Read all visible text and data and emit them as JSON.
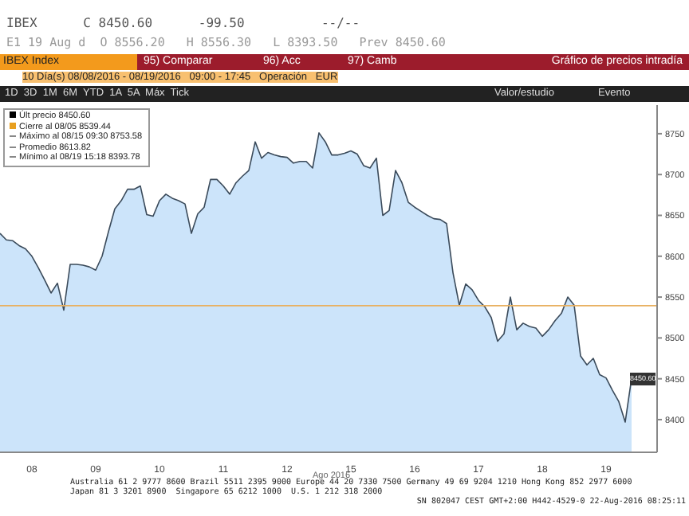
{
  "chart_data": {
    "type": "area",
    "title": "Gráfico de precios intradía",
    "subtitle": "IBEX Index",
    "xlabel": "Ago 2016",
    "categories": [
      null,
      null,
      null,
      null,
      null,
      "08",
      null,
      null,
      null,
      null,
      null,
      null,
      null,
      null,
      null,
      "09",
      null,
      null,
      null,
      null,
      null,
      null,
      null,
      null,
      null,
      "10",
      null,
      null,
      null,
      null,
      null,
      null,
      null,
      null,
      null,
      "11",
      null,
      null,
      null,
      null,
      null,
      null,
      null,
      null,
      null,
      "12",
      null,
      null,
      null,
      null,
      null,
      null,
      null,
      null,
      null,
      "15",
      null,
      null,
      null,
      null,
      null,
      null,
      null,
      null,
      null,
      "16",
      null,
      null,
      null,
      null,
      null,
      null,
      null,
      null,
      null,
      "17",
      null,
      null,
      null,
      null,
      null,
      null,
      null,
      null,
      null,
      "18",
      null,
      null,
      null,
      null,
      null,
      null,
      null,
      null,
      null,
      "19",
      null,
      null,
      null,
      null,
      null,
      null,
      null,
      null
    ],
    "series": [
      {
        "color": "#3a4a5a",
        "values": [
          8628,
          8620,
          8619,
          8613,
          8609,
          8600,
          8586,
          8571,
          8555,
          8567,
          8534,
          8590,
          8590,
          8589,
          8587,
          8583,
          8600,
          8630,
          8658,
          8668,
          8682,
          8682,
          8686,
          8651,
          8649,
          8668,
          8676,
          8671,
          8668,
          8664,
          8628,
          8652,
          8660,
          8694,
          8694,
          8686,
          8676,
          8690,
          8698,
          8705,
          8740,
          8720,
          8727,
          8724,
          8722,
          8721,
          8714,
          8716,
          8716,
          8708,
          8751,
          8740,
          8724,
          8724,
          8726,
          8729,
          8725,
          8711,
          8708,
          8720,
          8650,
          8656,
          8705,
          8690,
          8666,
          8660,
          8655,
          8650,
          8646,
          8645,
          8640,
          8580,
          8540,
          8566,
          8559,
          8546,
          8538,
          8525,
          8496,
          8505,
          8550,
          8510,
          8518,
          8514,
          8512,
          8502,
          8510,
          8521,
          8530,
          8550,
          8540,
          8478,
          8467,
          8475,
          8455,
          8451,
          8436,
          8422,
          8397,
          8450.6,
          null,
          null,
          null,
          null
        ]
      }
    ],
    "ylim": [
      8360,
      8785
    ],
    "yticks": [
      8400,
      8450,
      8500,
      8550,
      8600,
      8650,
      8700,
      8750
    ],
    "ref_lines": [
      {
        "axis": "y",
        "value": 8539.44,
        "color": "#e8b060"
      }
    ],
    "grid": false,
    "annotations": [
      "IBEX      C 8450.60      -99.50          --/--",
      "E1 19 Aug d  O 8556.20   H 8556.30   L 8393.50   Prev 8450.60",
      "95) Comparar",
      "96) Acc",
      "97) Camb",
      "10 Día(s) 08/08/2016 - 08/19/2016   09:00 - 17:45   Operación   EUR",
      "1D  3D  1M  6M  YTD  1A  5A  Máx  Tick",
      "Valor/estudio",
      "Evento",
      "Últ precio  8450.60",
      "Cierre al 08/05  8539.44",
      "Máximo al 08/15 09:30  8753.58",
      "Promedio  8613.82",
      "Mínimo al 08/19 15:18  8393.78",
      "Australia 61 2 9777 8600 Brazil 5511 2395 9000 Europe 44 20 7330 7500 Germany 49 69 9204 1210 Hong Kong 852 2977 6000",
      "Japan 81 3 3201 8900  Singapore 65 6212 1000  U.S. 1 212 318 2000",
      "SN 802047 CEST GMT+2:00 H442-4529-0 22-Aug-2016 08:25:11",
      {
        "text": "8450.60",
        "y": 8450.6
      }
    ]
  }
}
